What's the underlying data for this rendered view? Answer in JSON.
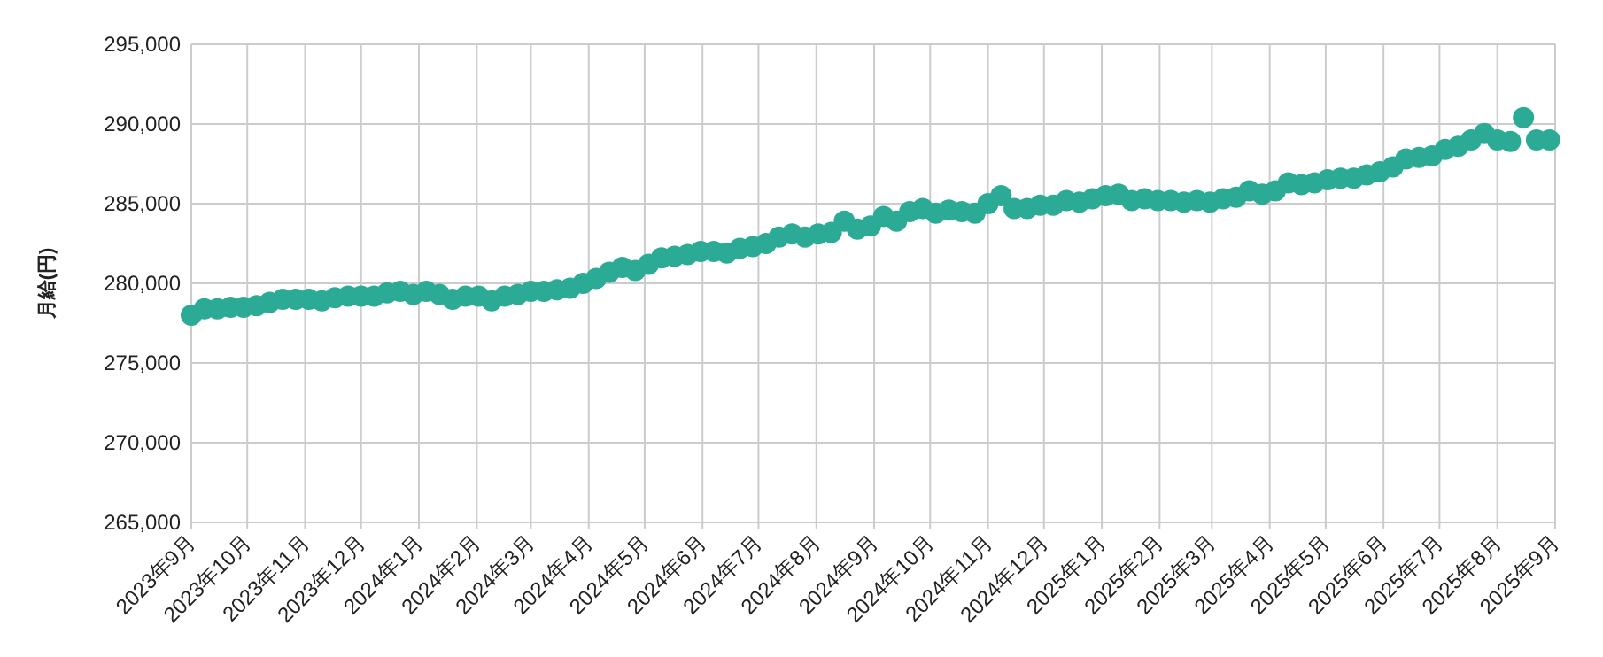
{
  "chart_data": {
    "type": "scatter",
    "ylabel": "月給(円)",
    "color": "#2bab96",
    "marker": "circle",
    "grid": true,
    "xlim": [
      "2023-09-01",
      "2025-09-01"
    ],
    "xticks": [
      {
        "value": "2023-09-01",
        "label": "2023年9月"
      },
      {
        "value": "2023-10-01",
        "label": "2023年10月"
      },
      {
        "value": "2023-11-01",
        "label": "2023年11月"
      },
      {
        "value": "2023-12-01",
        "label": "2023年12月"
      },
      {
        "value": "2024-01-01",
        "label": "2024年1月"
      },
      {
        "value": "2024-02-01",
        "label": "2024年2月"
      },
      {
        "value": "2024-03-01",
        "label": "2024年3月"
      },
      {
        "value": "2024-04-01",
        "label": "2024年4月"
      },
      {
        "value": "2024-05-01",
        "label": "2024年5月"
      },
      {
        "value": "2024-06-01",
        "label": "2024年6月"
      },
      {
        "value": "2024-07-01",
        "label": "2024年7月"
      },
      {
        "value": "2024-08-01",
        "label": "2024年8月"
      },
      {
        "value": "2024-09-01",
        "label": "2024年9月"
      },
      {
        "value": "2024-10-01",
        "label": "2024年10月"
      },
      {
        "value": "2024-11-01",
        "label": "2024年11月"
      },
      {
        "value": "2024-12-01",
        "label": "2024年12月"
      },
      {
        "value": "2025-01-01",
        "label": "2025年1月"
      },
      {
        "value": "2025-02-01",
        "label": "2025年2月"
      },
      {
        "value": "2025-03-01",
        "label": "2025年3月"
      },
      {
        "value": "2025-04-01",
        "label": "2025年4月"
      },
      {
        "value": "2025-05-01",
        "label": "2025年5月"
      },
      {
        "value": "2025-06-01",
        "label": "2025年6月"
      },
      {
        "value": "2025-07-01",
        "label": "2025年7月"
      },
      {
        "value": "2025-08-01",
        "label": "2025年8月"
      },
      {
        "value": "2025-09-01",
        "label": "2025年9月"
      }
    ],
    "ylim": [
      265000,
      295000
    ],
    "yticks": [
      {
        "value": 265000,
        "label": "265,000"
      },
      {
        "value": 270000,
        "label": "270,000"
      },
      {
        "value": 275000,
        "label": "275,000"
      },
      {
        "value": 280000,
        "label": "280,000"
      },
      {
        "value": 285000,
        "label": "285,000"
      },
      {
        "value": 290000,
        "label": "290,000"
      },
      {
        "value": 295000,
        "label": "295,000"
      }
    ],
    "x": [
      "2023-09-01",
      "2023-09-08",
      "2023-09-15",
      "2023-09-22",
      "2023-09-29",
      "2023-10-06",
      "2023-10-13",
      "2023-10-20",
      "2023-10-27",
      "2023-11-03",
      "2023-11-10",
      "2023-11-17",
      "2023-11-24",
      "2023-12-01",
      "2023-12-08",
      "2023-12-15",
      "2023-12-22",
      "2023-12-29",
      "2024-01-05",
      "2024-01-12",
      "2024-01-19",
      "2024-01-26",
      "2024-02-02",
      "2024-02-09",
      "2024-02-16",
      "2024-02-23",
      "2024-03-01",
      "2024-03-08",
      "2024-03-15",
      "2024-03-22",
      "2024-03-29",
      "2024-04-05",
      "2024-04-12",
      "2024-04-19",
      "2024-04-26",
      "2024-05-03",
      "2024-05-10",
      "2024-05-17",
      "2024-05-24",
      "2024-05-31",
      "2024-06-07",
      "2024-06-14",
      "2024-06-21",
      "2024-06-28",
      "2024-07-05",
      "2024-07-12",
      "2024-07-19",
      "2024-07-26",
      "2024-08-02",
      "2024-08-09",
      "2024-08-16",
      "2024-08-23",
      "2024-08-30",
      "2024-09-06",
      "2024-09-13",
      "2024-09-20",
      "2024-09-27",
      "2024-10-04",
      "2024-10-11",
      "2024-10-18",
      "2024-10-25",
      "2024-11-01",
      "2024-11-08",
      "2024-11-15",
      "2024-11-22",
      "2024-11-29",
      "2024-12-06",
      "2024-12-13",
      "2024-12-20",
      "2024-12-27",
      "2025-01-03",
      "2025-01-10",
      "2025-01-17",
      "2025-01-24",
      "2025-01-31",
      "2025-02-07",
      "2025-02-14",
      "2025-02-21",
      "2025-02-28",
      "2025-03-07",
      "2025-03-14",
      "2025-03-21",
      "2025-03-28",
      "2025-04-04",
      "2025-04-11",
      "2025-04-18",
      "2025-04-25",
      "2025-05-02",
      "2025-05-09",
      "2025-05-16",
      "2025-05-23",
      "2025-05-30",
      "2025-06-06",
      "2025-06-13",
      "2025-06-20",
      "2025-06-27",
      "2025-07-04",
      "2025-07-11",
      "2025-07-18",
      "2025-07-25",
      "2025-08-01",
      "2025-08-08",
      "2025-08-15",
      "2025-08-22",
      "2025-08-29"
    ],
    "values": [
      278000,
      278400,
      278400,
      278500,
      278500,
      278600,
      278800,
      279000,
      279000,
      279000,
      278900,
      279100,
      279200,
      279200,
      279200,
      279400,
      279500,
      279300,
      279500,
      279300,
      279000,
      279200,
      279200,
      278900,
      279200,
      279300,
      279500,
      279500,
      279600,
      279700,
      280000,
      280300,
      280700,
      281000,
      280800,
      281200,
      281600,
      281700,
      281800,
      282000,
      282000,
      281900,
      282200,
      282300,
      282500,
      282900,
      283100,
      282900,
      283100,
      283200,
      283900,
      283400,
      283600,
      284200,
      283900,
      284500,
      284700,
      284400,
      284600,
      284500,
      284400,
      285000,
      285500,
      284700,
      284700,
      284900,
      284900,
      285200,
      285100,
      285300,
      285500,
      285600,
      285200,
      285300,
      285200,
      285200,
      285100,
      285200,
      285100,
      285300,
      285400,
      285800,
      285600,
      285800,
      286300,
      286200,
      286300,
      286500,
      286600,
      286600,
      286800,
      287000,
      287300,
      287800,
      287900,
      288000,
      288400,
      288600,
      289000,
      289400,
      289000,
      288900,
      290400,
      289000,
      289000
    ]
  }
}
